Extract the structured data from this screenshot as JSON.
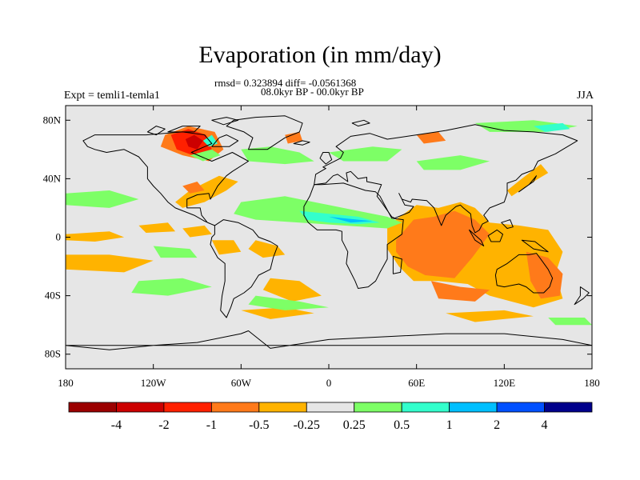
{
  "title": "Evaporation (in mm/day)",
  "stats_line": "rmsd= 0.323894 diff= -0.0561368",
  "period_line": "08.0kyr BP - 00.0kyr BP",
  "experiment_label": "Expt = temli1-temla1",
  "season_label": "JJA",
  "map": {
    "lon_range": [
      -180,
      180
    ],
    "lat_range": [
      -90,
      90
    ],
    "lat_ticks": [
      {
        "value": 80,
        "label": "80N"
      },
      {
        "value": 40,
        "label": "40N"
      },
      {
        "value": 0,
        "label": "0"
      },
      {
        "value": -40,
        "label": "40S"
      },
      {
        "value": -80,
        "label": "80S"
      }
    ],
    "lon_ticks": [
      {
        "value": -180,
        "label": "180"
      },
      {
        "value": -120,
        "label": "120W"
      },
      {
        "value": -60,
        "label": "60W"
      },
      {
        "value": 0,
        "label": "0"
      },
      {
        "value": 60,
        "label": "60E"
      },
      {
        "value": 120,
        "label": "120E"
      },
      {
        "value": 180,
        "label": "180"
      }
    ],
    "background_color": "#e6e6e6"
  },
  "colorbar": {
    "colors": [
      "#9b0000",
      "#cc0000",
      "#ff2000",
      "#ff7a1a",
      "#ffb300",
      "#e6e6e6",
      "#7dff66",
      "#33ffcc",
      "#00bfff",
      "#0050ff",
      "#00008b"
    ],
    "labels": [
      "-4",
      "-2",
      "-1",
      "-0.5",
      "-0.25",
      "0.25",
      "0.5",
      "1",
      "2",
      "4"
    ]
  }
}
